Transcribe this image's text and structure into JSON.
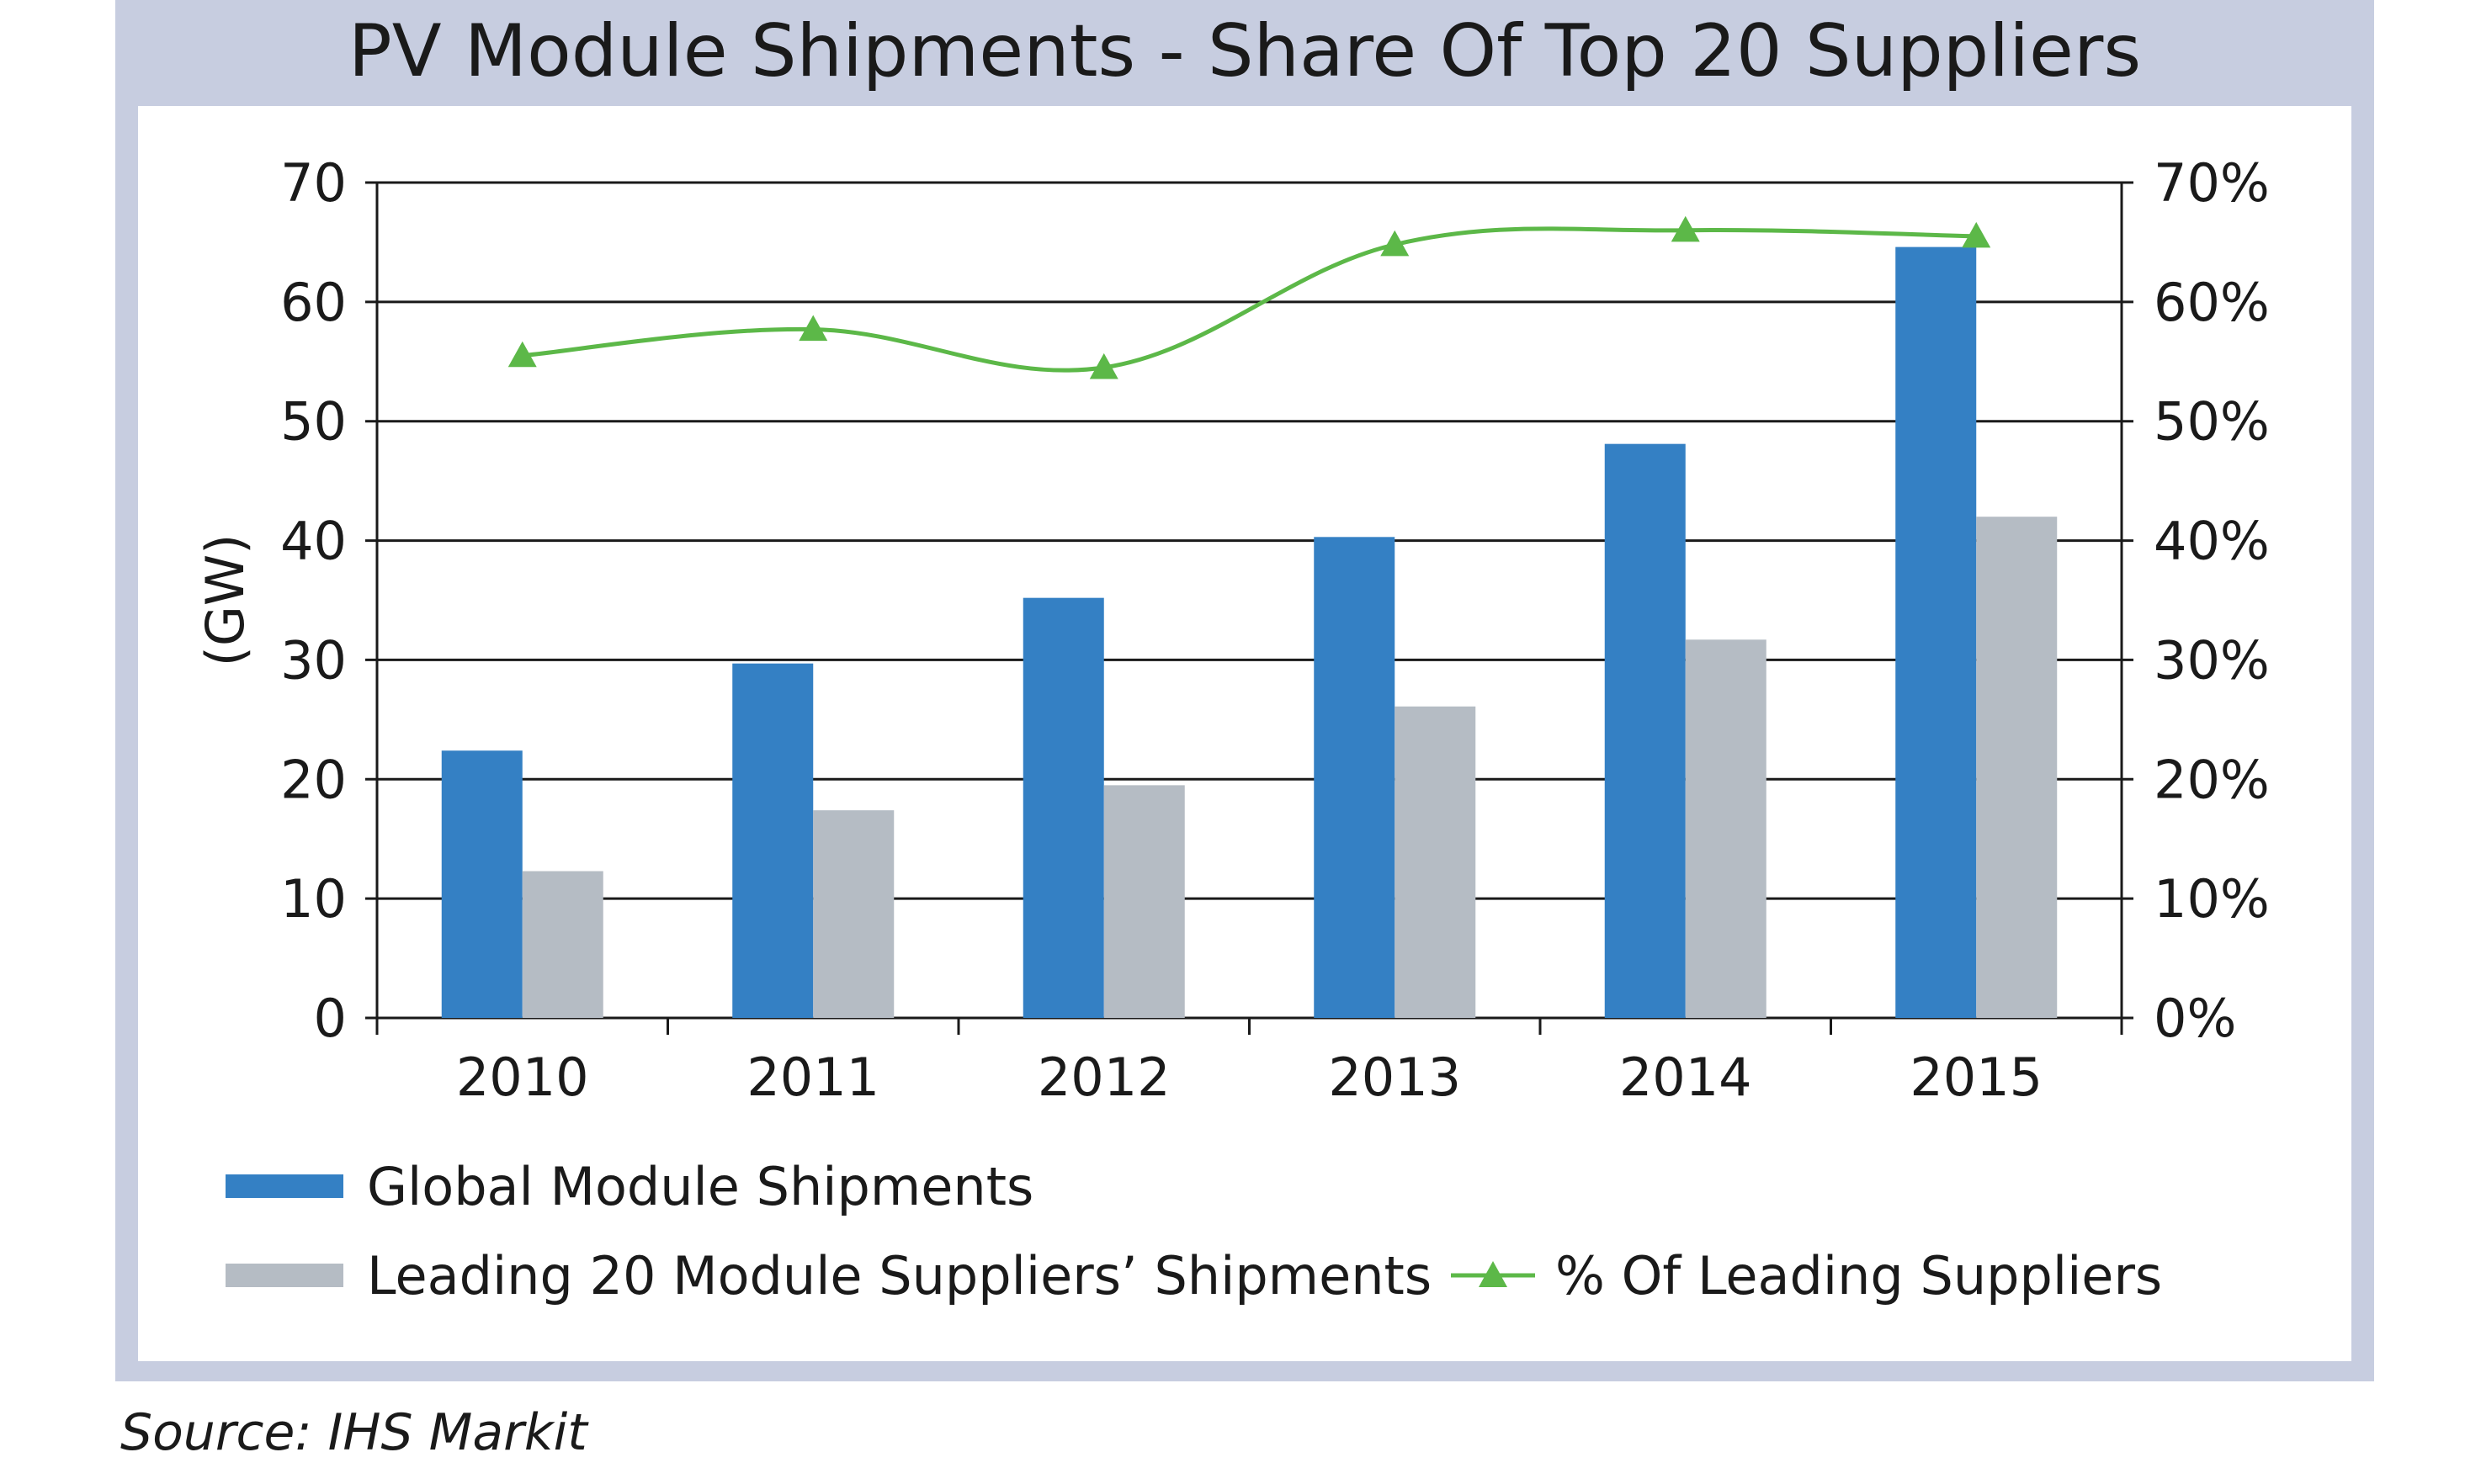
{
  "title": "PV Module Shipments - Share Of Top 20 Suppliers",
  "source": "Source: IHS Markit",
  "chart_data": {
    "type": "bar",
    "title": "PV Module Shipments - Share Of Top 20 Suppliers",
    "categories": [
      "2010",
      "2011",
      "2012",
      "2013",
      "2014",
      "2015"
    ],
    "ylabel": "(GW)",
    "ylim": [
      0,
      70
    ],
    "yticks": [
      "0",
      "10",
      "20",
      "30",
      "40",
      "50",
      "60",
      "70"
    ],
    "y2lim": [
      0,
      70
    ],
    "y2ticks": [
      "0%",
      "10%",
      "20%",
      "30%",
      "40%",
      "50%",
      "60%",
      "70%"
    ],
    "grid": true,
    "series": [
      {
        "name": "Global Module Shipments",
        "type": "bar",
        "axis": "left",
        "color": "#3480c4",
        "values": [
          22.4,
          29.7,
          35.2,
          40.3,
          48.1,
          64.6
        ]
      },
      {
        "name": "Leading 20 Module Suppliers’ Shipments",
        "type": "bar",
        "axis": "left",
        "color": "#b5bcc4",
        "values": [
          12.3,
          17.4,
          19.5,
          26.1,
          31.7,
          42.0
        ]
      },
      {
        "name": "% Of Leading Suppliers",
        "type": "line",
        "axis": "right",
        "color": "#5cb848",
        "marker": "triangle",
        "values": [
          55.5,
          57.7,
          54.5,
          64.8,
          66.0,
          65.5
        ]
      }
    ]
  }
}
